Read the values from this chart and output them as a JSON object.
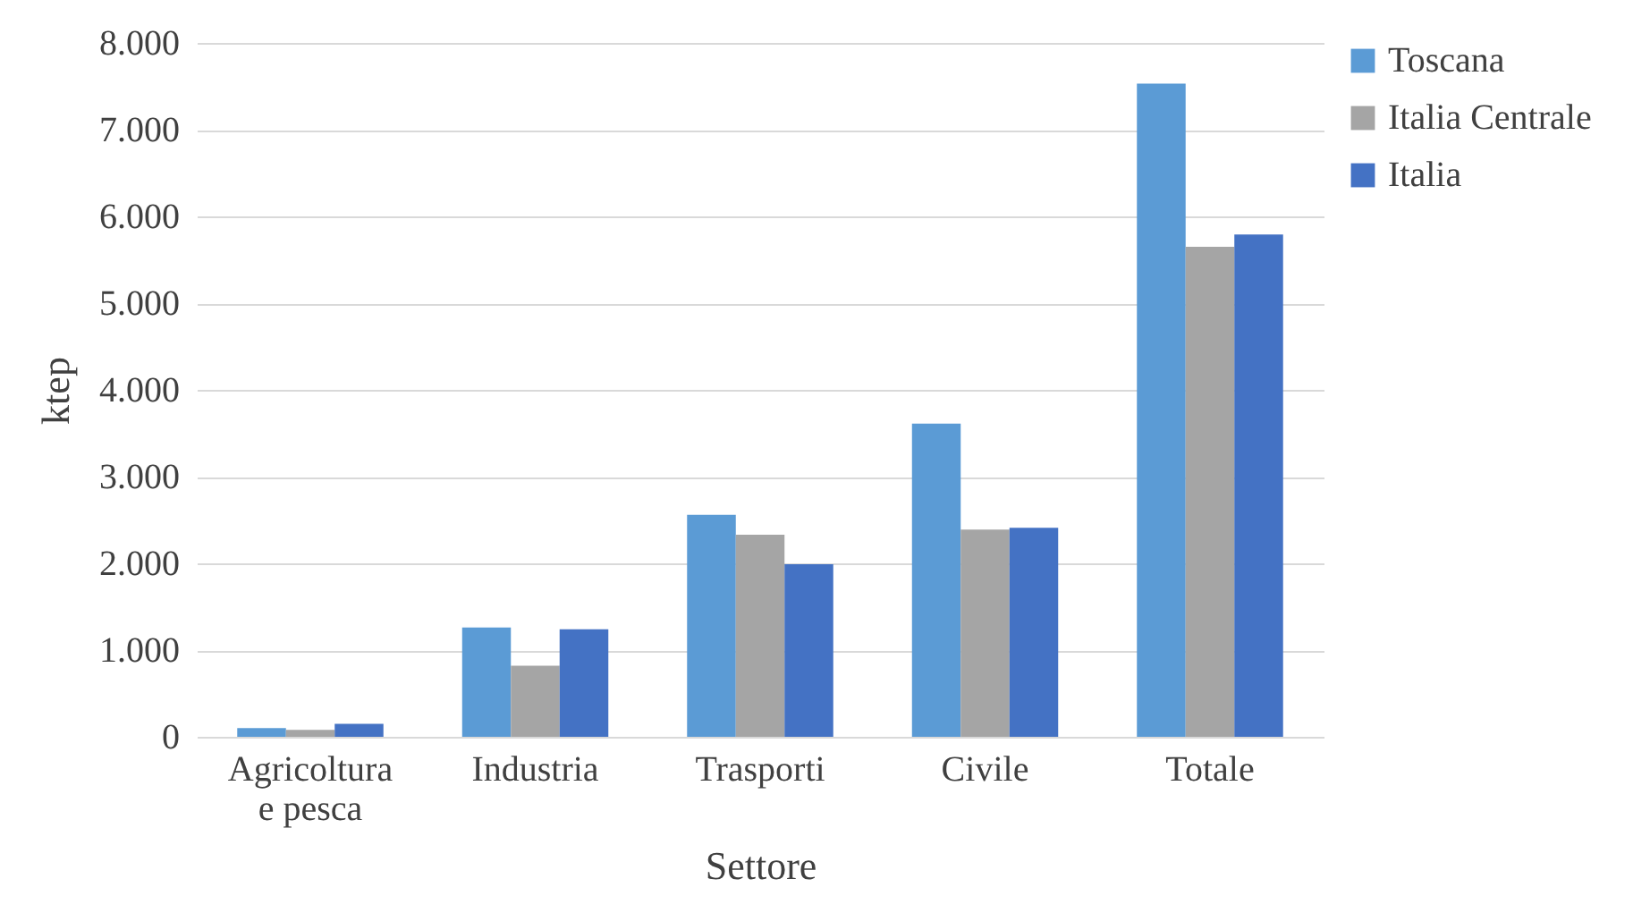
{
  "chart_data": {
    "type": "bar",
    "xlabel": "Settore",
    "ylabel": "ktep",
    "categories": [
      "Agricoltura e pesca",
      "Industria",
      "Trasporti",
      "Civile",
      "Totale"
    ],
    "series": [
      {
        "name": "Toscana",
        "color": "#5b9bd5",
        "values": [
          100,
          1260,
          2560,
          3610,
          7530
        ]
      },
      {
        "name": "Italia Centrale",
        "color": "#a5a5a5",
        "values": [
          80,
          820,
          2330,
          2390,
          5650
        ]
      },
      {
        "name": "Italia",
        "color": "#4472c4",
        "values": [
          150,
          1240,
          1990,
          2410,
          5790
        ]
      }
    ],
    "ylim": [
      0,
      8000
    ],
    "yticks": [
      {
        "value": 0,
        "label": "0"
      },
      {
        "value": 1000,
        "label": "1.000"
      },
      {
        "value": 2000,
        "label": "2.000"
      },
      {
        "value": 3000,
        "label": "3.000"
      },
      {
        "value": 4000,
        "label": "4.000"
      },
      {
        "value": 5000,
        "label": "5.000"
      },
      {
        "value": 6000,
        "label": "6.000"
      },
      {
        "value": 7000,
        "label": "7.000"
      },
      {
        "value": 8000,
        "label": "8.000"
      }
    ],
    "grid": "y",
    "legend": "right"
  }
}
